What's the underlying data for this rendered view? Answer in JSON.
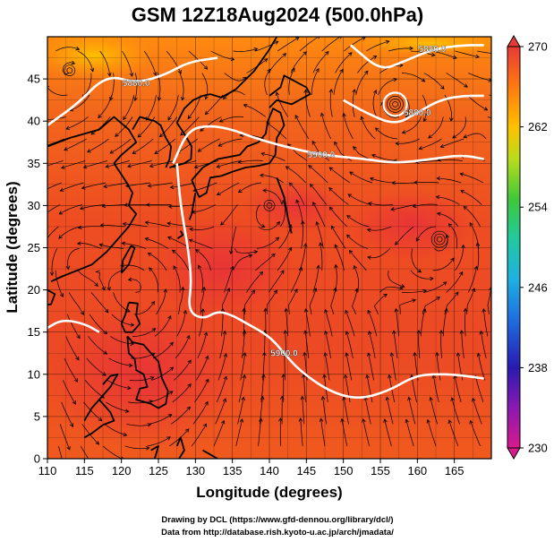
{
  "chart_data": {
    "type": "heatmap",
    "title": "GSM 12Z18Aug2024 (500.0hPa)",
    "xlabel": "Longitude (degrees)",
    "ylabel": "Latitude  (degrees)",
    "xlim": [
      110,
      170
    ],
    "ylim": [
      0,
      50
    ],
    "x_ticks": [
      110,
      115,
      120,
      125,
      130,
      135,
      140,
      145,
      150,
      155,
      160,
      165
    ],
    "y_ticks": [
      0,
      5,
      10,
      15,
      20,
      25,
      30,
      35,
      40,
      45
    ],
    "colorbar": {
      "ticks": [
        270,
        262,
        254,
        246,
        238,
        230
      ],
      "range": [
        230,
        270
      ],
      "colors": [
        "#d21a8a",
        "#2a1ab0",
        "#1f7fe0",
        "#21c9a8",
        "#3fc83a",
        "#c9e01c",
        "#ffb800",
        "#ff7a10",
        "#f04020",
        "#e83a36"
      ]
    },
    "contours": [
      {
        "label": "5880.0",
        "points": [
          [
            110,
            39.5
          ],
          [
            114,
            42
          ],
          [
            118,
            45.5
          ],
          [
            122,
            44.5
          ],
          [
            126,
            45.5
          ],
          [
            129,
            47
          ],
          [
            133,
            47.5
          ]
        ]
      },
      {
        "label": "5900.0",
        "points": [
          [
            127,
            35
          ],
          [
            129,
            39
          ],
          [
            132,
            39.5
          ],
          [
            135,
            39
          ],
          [
            138,
            38
          ],
          [
            142,
            37
          ],
          [
            147,
            36
          ],
          [
            153,
            35.5
          ],
          [
            157,
            35
          ],
          [
            162,
            35.5
          ],
          [
            166,
            36
          ],
          [
            169,
            35.5
          ]
        ]
      },
      {
        "label": "5880.0",
        "points": [
          [
            151,
            49
          ],
          [
            155,
            46
          ],
          [
            158,
            47
          ],
          [
            162,
            48.5
          ],
          [
            166,
            49
          ],
          [
            169,
            49
          ]
        ]
      },
      {
        "label": "5880.0",
        "points": [
          [
            150,
            42.5
          ],
          [
            153,
            41
          ],
          [
            157,
            39.5
          ],
          [
            160,
            41
          ],
          [
            163,
            42.5
          ],
          [
            166,
            43
          ],
          [
            169,
            43
          ]
        ]
      },
      {
        "label": "5900.0",
        "points": [
          [
            127.5,
            35
          ],
          [
            128,
            30
          ],
          [
            129,
            25
          ],
          [
            129.5,
            21
          ],
          [
            129,
            17.5
          ],
          [
            131,
            16.5
          ],
          [
            133,
            17.5
          ],
          [
            135,
            17
          ],
          [
            137,
            16
          ],
          [
            140,
            14.5
          ],
          [
            142,
            12.5
          ],
          [
            144,
            10.5
          ],
          [
            148,
            8
          ],
          [
            152,
            7
          ],
          [
            156,
            8
          ],
          [
            159,
            9.5
          ],
          [
            161,
            10
          ],
          [
            165,
            10
          ],
          [
            169,
            9.5
          ]
        ]
      },
      {
        "label": "",
        "points": [
          [
            110,
            15.5
          ],
          [
            112,
            16.5
          ],
          [
            115,
            16
          ],
          [
            117,
            15
          ]
        ]
      }
    ]
  },
  "credits": {
    "line1": "Drawing by DCL (https://www.gfd-dennou.org/library/dcl/)",
    "line2": "Data from http://database.rish.kyoto-u.ac.jp/arch/jmadata/"
  }
}
